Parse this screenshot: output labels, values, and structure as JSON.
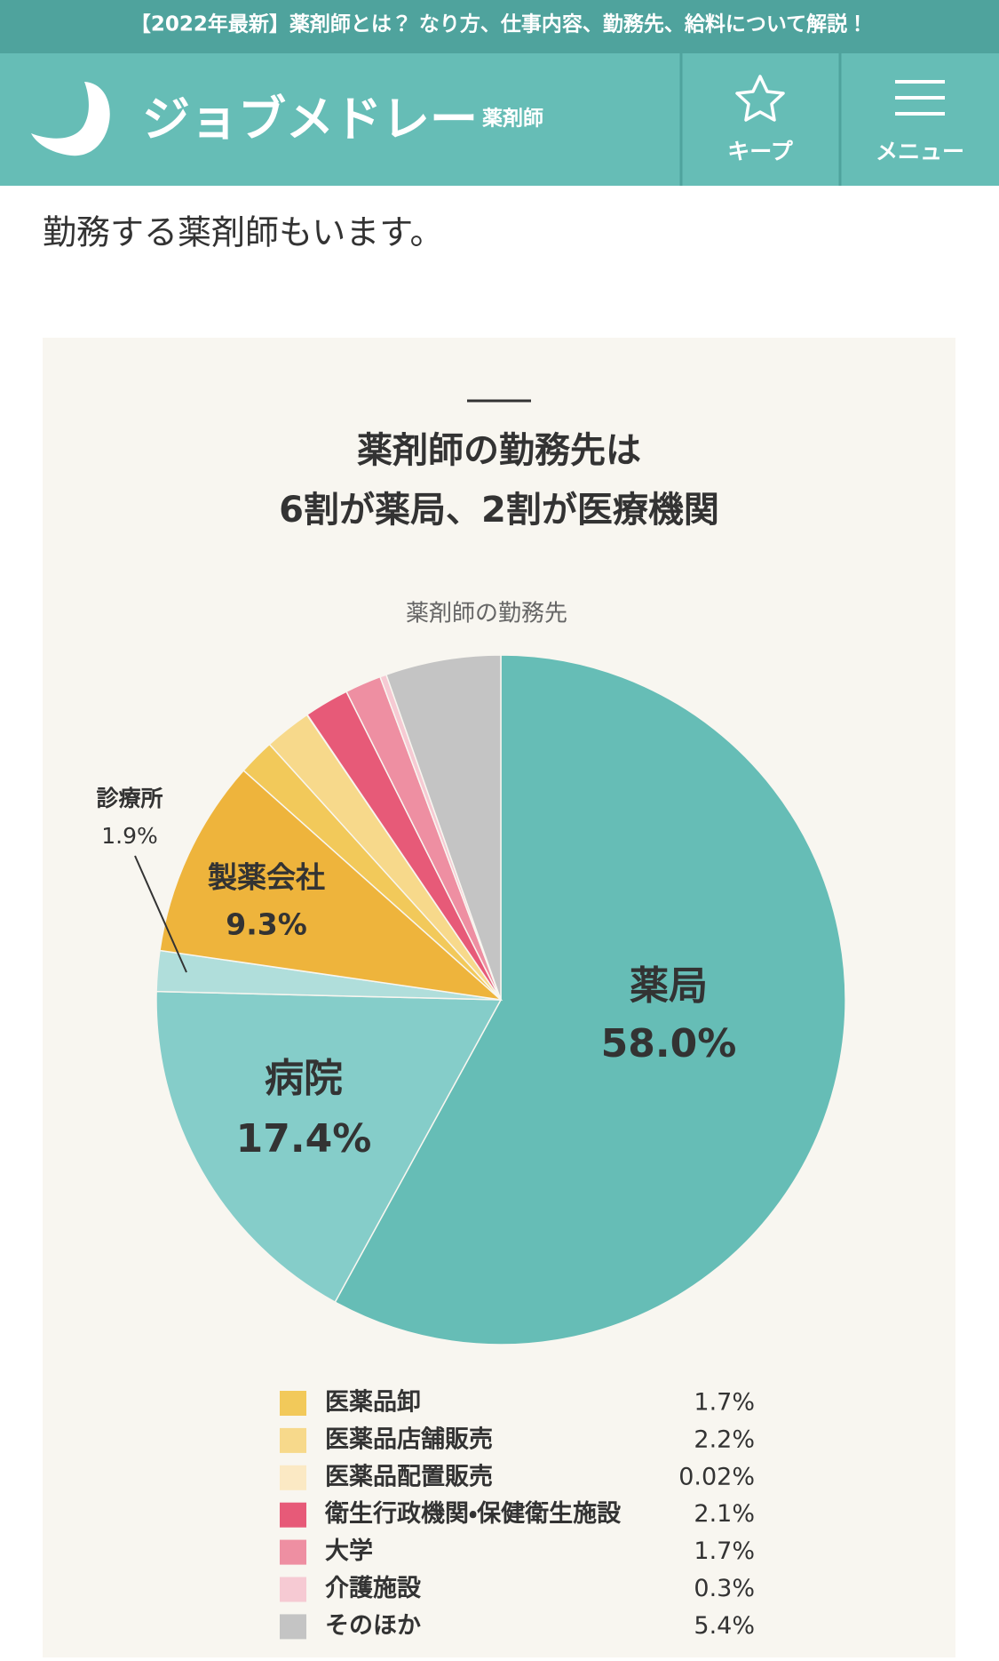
{
  "header": {
    "banner": "【2022年最新】薬剤師とは？ なり方、仕事内容、勤務先、給料について解説！",
    "logo": "ジョブメドレー",
    "section": "薬剤師",
    "keep": "キープ",
    "menu": "メニュー"
  },
  "intro": "勤務する薬剤師もいます。",
  "chart_data": {
    "type": "pie",
    "title": [
      "薬剤師の勤務先は",
      "6割が薬局、2割が医療機関"
    ],
    "subtitle": "薬剤師の勤務先",
    "categories": [
      "薬局",
      "病院",
      "診療所",
      "製薬会社",
      "医薬品卸",
      "医薬品店舗販売",
      "医薬品配置販売",
      "衛生行政機関・保健衛生施設",
      "大学",
      "介護施設",
      "そのほか"
    ],
    "values": [
      58.0,
      17.4,
      1.9,
      9.3,
      1.7,
      2.2,
      0.02,
      2.1,
      1.7,
      0.3,
      5.4
    ],
    "value_labels": [
      "58.0%",
      "17.4%",
      "1.9%",
      "9.3%",
      "1.7%",
      "2.2%",
      "0.02%",
      "2.1%",
      "1.7%",
      "0.3%",
      "5.4%"
    ],
    "colors": [
      "#66bdb6",
      "#85cdc9",
      "#b0dedb",
      "#eeb43c",
      "#f2c95a",
      "#f7d98b",
      "#fbe9c4",
      "#e75a78",
      "#ee8fa2",
      "#f6cad3",
      "#c4c4c4"
    ]
  }
}
